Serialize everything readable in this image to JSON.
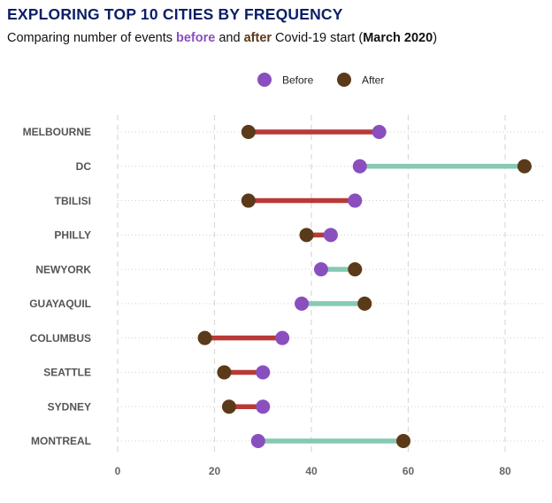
{
  "title": "EXPLORING TOP 10 CITIES BY FREQUENCY",
  "subtitle": {
    "part1": "Comparing number of events ",
    "before_word": "before",
    "part2": " and ",
    "after_word": "after",
    "part3": " Covid-19 start (",
    "date": "March 2020",
    "part4": ")"
  },
  "colors": {
    "before": "#8a4fbf",
    "after": "#5a3a18",
    "decrease": "#b83a36",
    "increase": "#86c9b4",
    "title": "#0b1f66"
  },
  "chart_data": {
    "type": "dumbbell",
    "legend": {
      "position": "top",
      "before_label": "Before",
      "after_label": "After"
    },
    "xlim": [
      0,
      88
    ],
    "x_ticks": [
      0,
      20,
      40,
      60,
      80
    ],
    "grid": true,
    "categories": [
      "MELBOURNE",
      "DC",
      "TBILISI",
      "PHILLY",
      "NEWYORK",
      "GUAYAQUIL",
      "COLUMBUS",
      "SEATTLE",
      "SYDNEY",
      "MONTREAL"
    ],
    "series": [
      {
        "name": "Before",
        "values": [
          54,
          50,
          49,
          44,
          42,
          38,
          34,
          30,
          30,
          29
        ]
      },
      {
        "name": "After",
        "values": [
          27,
          84,
          27,
          39,
          49,
          51,
          18,
          22,
          23,
          59
        ]
      }
    ]
  }
}
